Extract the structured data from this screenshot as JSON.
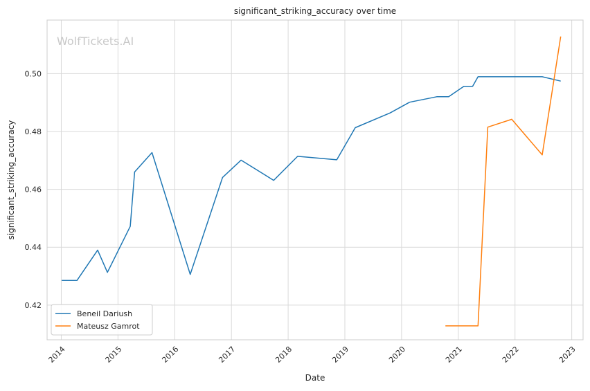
{
  "chart_data": {
    "type": "line",
    "title": "significant_striking_accuracy over time",
    "xlabel": "Date",
    "ylabel": "significant_striking_accuracy",
    "watermark": "WolfTickets.AI",
    "x_axis_kind": "date",
    "xlim": [
      2013.75,
      2023.2
    ],
    "ylim": [
      0.408,
      0.5185
    ],
    "x_ticks": [
      2014,
      2015,
      2016,
      2017,
      2018,
      2019,
      2020,
      2021,
      2022,
      2023
    ],
    "x_tick_labels": [
      "2014",
      "2015",
      "2016",
      "2017",
      "2018",
      "2019",
      "2020",
      "2021",
      "2022",
      "2023"
    ],
    "y_ticks": [
      0.42,
      0.44,
      0.46,
      0.48,
      0.5
    ],
    "y_tick_labels": [
      "0.42",
      "0.44",
      "0.46",
      "0.48",
      "0.50"
    ],
    "grid": true,
    "legend_position": "lower-left",
    "series": [
      {
        "name": "Beneil Dariush",
        "color": "#1f77b4",
        "points": [
          {
            "x": "2014-01-04",
            "y": 0.4285
          },
          {
            "x": "2014-04-12",
            "y": 0.4285
          },
          {
            "x": "2014-08-23",
            "y": 0.439
          },
          {
            "x": "2014-10-25",
            "y": 0.4313
          },
          {
            "x": "2015-03-21",
            "y": 0.4472
          },
          {
            "x": "2015-04-18",
            "y": 0.466
          },
          {
            "x": "2015-08-08",
            "y": 0.4727
          },
          {
            "x": "2016-04-10",
            "y": 0.4306
          },
          {
            "x": "2016-11-05",
            "y": 0.4641
          },
          {
            "x": "2017-03-04",
            "y": 0.4701
          },
          {
            "x": "2017-09-30",
            "y": 0.4631
          },
          {
            "x": "2018-03-03",
            "y": 0.4714
          },
          {
            "x": "2018-11-10",
            "y": 0.4702
          },
          {
            "x": "2019-03-09",
            "y": 0.4813
          },
          {
            "x": "2019-10-19",
            "y": 0.4864
          },
          {
            "x": "2020-02-22",
            "y": 0.4901
          },
          {
            "x": "2020-08-15",
            "y": 0.492
          },
          {
            "x": "2020-10-31",
            "y": 0.492
          },
          {
            "x": "2021-02-06",
            "y": 0.4956
          },
          {
            "x": "2021-04-03",
            "y": 0.4956
          },
          {
            "x": "2021-05-08",
            "y": 0.4989
          },
          {
            "x": "2022-06-25",
            "y": 0.4989
          },
          {
            "x": "2022-10-22",
            "y": 0.4974
          }
        ]
      },
      {
        "name": "Mateusz Gamrot",
        "color": "#ff7f0e",
        "points": [
          {
            "x": "2020-10-10",
            "y": 0.4128
          },
          {
            "x": "2021-05-08",
            "y": 0.4128
          },
          {
            "x": "2021-07-10",
            "y": 0.4815
          },
          {
            "x": "2021-12-11",
            "y": 0.4842
          },
          {
            "x": "2022-06-25",
            "y": 0.4719
          },
          {
            "x": "2022-10-22",
            "y": 0.5128
          }
        ]
      }
    ]
  }
}
